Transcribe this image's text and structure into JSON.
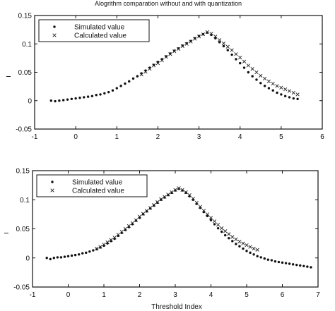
{
  "chart_data": [
    {
      "type": "scatter",
      "title": "Alogrithm comparation without and with quantization",
      "xlabel": "",
      "ylabel": "",
      "xlim": [
        -1,
        6
      ],
      "ylim": [
        -0.05,
        0.15
      ],
      "xticks": [
        "-1",
        "0",
        "1",
        "2",
        "3",
        "4",
        "5",
        "6"
      ],
      "yticks": [
        "-0.05",
        "0",
        "0.05",
        "0.1",
        "0.15"
      ],
      "legend": {
        "placement": "top-left",
        "entries": [
          "Simulated value",
          "Calculated value"
        ]
      },
      "series": [
        {
          "name": "Simulated value",
          "marker": "dot",
          "x": [
            -0.6,
            -0.5,
            -0.4,
            -0.3,
            -0.2,
            -0.1,
            0.0,
            0.1,
            0.2,
            0.3,
            0.4,
            0.5,
            0.6,
            0.7,
            0.8,
            0.9,
            1.0,
            1.1,
            1.2,
            1.3,
            1.4,
            1.5,
            1.6,
            1.7,
            1.8,
            1.9,
            2.0,
            2.1,
            2.2,
            2.3,
            2.4,
            2.5,
            2.6,
            2.7,
            2.8,
            2.9,
            3.0,
            3.1,
            3.2,
            3.3,
            3.4,
            3.5,
            3.6,
            3.7,
            3.8,
            3.9,
            4.0,
            4.1,
            4.2,
            4.3,
            4.4,
            4.5,
            4.6,
            4.7,
            4.8,
            4.9,
            5.0,
            5.1,
            5.2,
            5.3,
            5.4
          ],
          "y": [
            0.0,
            -0.001,
            0.0,
            0.001,
            0.002,
            0.003,
            0.004,
            0.005,
            0.006,
            0.007,
            0.008,
            0.01,
            0.011,
            0.013,
            0.015,
            0.018,
            0.022,
            0.026,
            0.03,
            0.034,
            0.039,
            0.043,
            0.048,
            0.053,
            0.058,
            0.063,
            0.068,
            0.073,
            0.078,
            0.083,
            0.088,
            0.092,
            0.097,
            0.101,
            0.105,
            0.11,
            0.114,
            0.117,
            0.12,
            0.116,
            0.11,
            0.103,
            0.096,
            0.089,
            0.081,
            0.073,
            0.066,
            0.058,
            0.05,
            0.043,
            0.037,
            0.031,
            0.026,
            0.022,
            0.018,
            0.014,
            0.011,
            0.008,
            0.006,
            0.004,
            0.003
          ]
        },
        {
          "name": "Calculated value",
          "marker": "x",
          "x": [
            1.6,
            1.7,
            1.8,
            1.9,
            2.0,
            2.1,
            2.2,
            2.3,
            2.4,
            2.5,
            2.6,
            2.7,
            2.8,
            2.9,
            3.0,
            3.1,
            3.2,
            3.3,
            3.4,
            3.5,
            3.6,
            3.7,
            3.8,
            3.9,
            4.0,
            4.1,
            4.2,
            4.3,
            4.4,
            4.5,
            4.6,
            4.7,
            4.8,
            4.9,
            5.0,
            5.1,
            5.2,
            5.3,
            5.4
          ],
          "y": [
            0.046,
            0.051,
            0.056,
            0.062,
            0.066,
            0.071,
            0.077,
            0.082,
            0.087,
            0.091,
            0.096,
            0.1,
            0.104,
            0.109,
            0.113,
            0.117,
            0.121,
            0.118,
            0.113,
            0.107,
            0.101,
            0.095,
            0.089,
            0.082,
            0.076,
            0.069,
            0.062,
            0.056,
            0.05,
            0.044,
            0.039,
            0.034,
            0.03,
            0.026,
            0.023,
            0.02,
            0.017,
            0.014,
            0.011
          ]
        }
      ]
    },
    {
      "type": "scatter",
      "title": "",
      "xlabel": "Threshold Index",
      "ylabel": "",
      "xlim": [
        -1,
        7
      ],
      "ylim": [
        -0.05,
        0.15
      ],
      "xticks": [
        "-1",
        "0",
        "1",
        "2",
        "3",
        "4",
        "5",
        "6",
        "7"
      ],
      "yticks": [
        "-0.05",
        "0",
        "0.05",
        "0.1",
        "0.15"
      ],
      "legend": {
        "placement": "top-left",
        "entries": [
          "Simulated value",
          "Calculated value"
        ]
      },
      "series": [
        {
          "name": "Simulated value",
          "marker": "dot",
          "x": [
            -0.6,
            -0.5,
            -0.4,
            -0.3,
            -0.2,
            -0.1,
            0.0,
            0.1,
            0.2,
            0.3,
            0.4,
            0.5,
            0.6,
            0.7,
            0.8,
            0.9,
            1.0,
            1.1,
            1.2,
            1.3,
            1.4,
            1.5,
            1.6,
            1.7,
            1.8,
            1.9,
            2.0,
            2.1,
            2.2,
            2.3,
            2.4,
            2.5,
            2.6,
            2.7,
            2.8,
            2.9,
            3.0,
            3.1,
            3.2,
            3.3,
            3.4,
            3.5,
            3.6,
            3.7,
            3.8,
            3.9,
            4.0,
            4.1,
            4.2,
            4.3,
            4.4,
            4.5,
            4.6,
            4.7,
            4.8,
            4.9,
            5.0,
            5.1,
            5.2,
            5.3,
            5.4,
            5.5,
            5.6,
            5.7,
            5.8,
            5.9,
            6.0,
            6.1,
            6.2,
            6.3,
            6.4,
            6.5,
            6.6,
            6.7,
            6.8
          ],
          "y": [
            0.0,
            -0.002,
            0.0,
            0.001,
            0.001,
            0.002,
            0.003,
            0.004,
            0.005,
            0.006,
            0.008,
            0.009,
            0.011,
            0.013,
            0.015,
            0.018,
            0.021,
            0.025,
            0.029,
            0.033,
            0.038,
            0.043,
            0.048,
            0.053,
            0.058,
            0.064,
            0.069,
            0.075,
            0.08,
            0.085,
            0.09,
            0.095,
            0.1,
            0.104,
            0.108,
            0.112,
            0.116,
            0.119,
            0.116,
            0.112,
            0.106,
            0.1,
            0.093,
            0.086,
            0.079,
            0.072,
            0.065,
            0.058,
            0.051,
            0.045,
            0.039,
            0.034,
            0.029,
            0.024,
            0.02,
            0.016,
            0.012,
            0.009,
            0.006,
            0.003,
            0.001,
            -0.001,
            -0.003,
            -0.004,
            -0.006,
            -0.007,
            -0.008,
            -0.009,
            -0.01,
            -0.011,
            -0.012,
            -0.013,
            -0.014,
            -0.015,
            -0.016
          ]
        },
        {
          "name": "Calculated value",
          "marker": "x",
          "x": [
            0.8,
            0.9,
            1.0,
            1.1,
            1.2,
            1.3,
            1.4,
            1.5,
            1.6,
            1.7,
            1.8,
            1.9,
            2.0,
            2.1,
            2.2,
            2.3,
            2.4,
            2.5,
            2.6,
            2.7,
            2.8,
            2.9,
            3.0,
            3.1,
            3.2,
            3.3,
            3.4,
            3.5,
            3.6,
            3.7,
            3.8,
            3.9,
            4.0,
            4.1,
            4.2,
            4.3,
            4.4,
            4.5,
            4.6,
            4.7,
            4.8,
            4.9,
            5.0,
            5.1,
            5.2,
            5.3
          ],
          "y": [
            0.016,
            0.019,
            0.023,
            0.027,
            0.031,
            0.035,
            0.04,
            0.045,
            0.05,
            0.055,
            0.06,
            0.065,
            0.071,
            0.076,
            0.081,
            0.086,
            0.091,
            0.096,
            0.101,
            0.105,
            0.109,
            0.113,
            0.117,
            0.12,
            0.117,
            0.113,
            0.108,
            0.102,
            0.095,
            0.088,
            0.081,
            0.075,
            0.069,
            0.063,
            0.057,
            0.051,
            0.046,
            0.041,
            0.036,
            0.032,
            0.028,
            0.025,
            0.022,
            0.019,
            0.016,
            0.014
          ]
        }
      ]
    }
  ]
}
